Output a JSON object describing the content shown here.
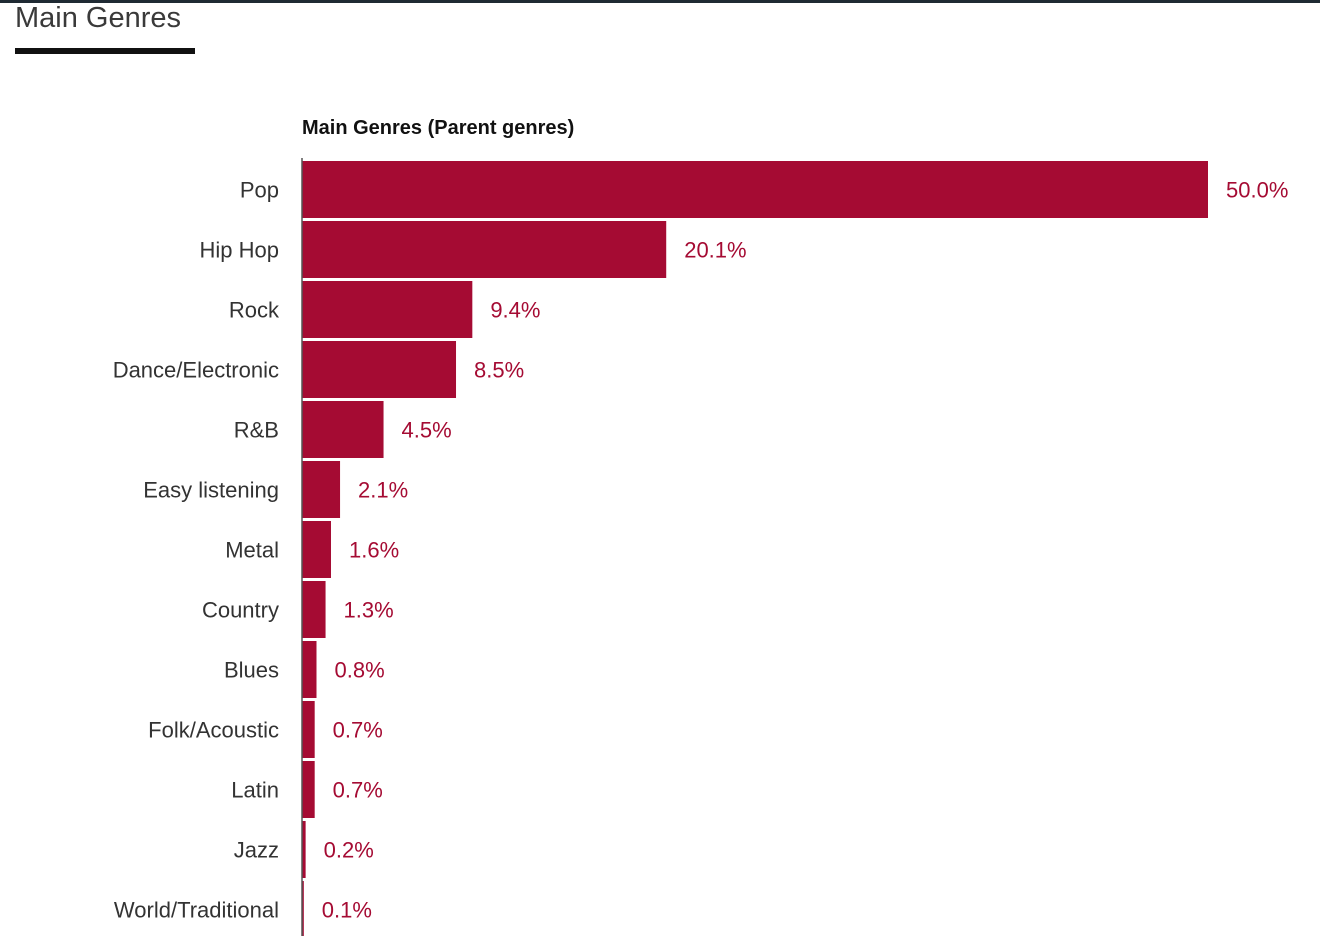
{
  "page": {
    "heading": "Main Genres"
  },
  "chart_data": {
    "type": "bar",
    "orientation": "horizontal",
    "title": "Main Genres (Parent genres)",
    "categories": [
      "Pop",
      "Hip Hop",
      "Rock",
      "Dance/Electronic",
      "R&B",
      "Easy listening",
      "Metal",
      "Country",
      "Blues",
      "Folk/Acoustic",
      "Latin",
      "Jazz",
      "World/Traditional"
    ],
    "values": [
      50.0,
      20.1,
      9.4,
      8.5,
      4.5,
      2.1,
      1.6,
      1.3,
      0.8,
      0.7,
      0.7,
      0.2,
      0.1
    ],
    "value_labels": [
      "50.0%",
      "20.1%",
      "9.4%",
      "8.5%",
      "4.5%",
      "2.1%",
      "1.6%",
      "1.3%",
      "0.8%",
      "0.7%",
      "0.7%",
      "0.2%",
      "0.1%"
    ],
    "xlim": [
      0,
      50
    ],
    "grid": false,
    "colors": {
      "bar": "#a50b33",
      "value_label": "#a50b33",
      "axis": "#555555"
    }
  }
}
